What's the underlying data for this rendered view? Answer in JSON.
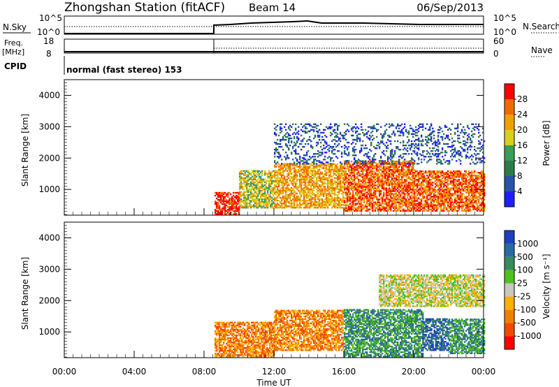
{
  "header": {
    "title": "Zhongshan Station (fitACF)",
    "beam": "Beam 14",
    "date": "06/Sep/2013"
  },
  "top_panels": {
    "nsky_label": "N.Sky",
    "nsky_ticks": [
      "10^5",
      "10^0"
    ],
    "nsearch_label": "N.Search",
    "nsearch_ticks": [
      "10^5",
      "10^0"
    ],
    "freq_label_line1": "Freq.",
    "freq_label_line2": "[MHz]",
    "freq_ticks": [
      "18",
      "8"
    ],
    "nave_label": "Nave",
    "nave_ticks": [
      "60",
      "0"
    ],
    "cpid_label": "CPID",
    "cpid_text": "normal (fast stereo) 153"
  },
  "colors": {
    "power": [
      "#1f1fff",
      "#2a52a8",
      "#2e7a4a",
      "#3c9c5a",
      "#d8d020",
      "#f0a000",
      "#f06a00",
      "#ff0000"
    ],
    "velocity": [
      "#ff0000",
      "#f04c00",
      "#f08000",
      "#ffb000",
      "#c8c8c0",
      "#50c020",
      "#3a8a5a",
      "#2a6aa0",
      "#1f3fc0"
    ]
  },
  "power_scale": {
    "label": "Power [dB]",
    "ticks": [
      "4",
      "8",
      "12",
      "16",
      "20",
      "24",
      "28"
    ]
  },
  "velocity_scale": {
    "label": "Velocity [m s⁻¹]",
    "ticks": [
      "-1000",
      "-500",
      "-100",
      "-25",
      "25",
      "100",
      "500",
      "1000"
    ]
  },
  "chart_data": [
    {
      "type": "heatmap",
      "name": "power",
      "ylabel": "Slant Range [km]",
      "ylim": [
        180,
        4500
      ],
      "yticks": [
        "1000",
        "2000",
        "3000",
        "4000"
      ],
      "xlim": [
        0,
        24
      ],
      "xticks": [
        "00:00",
        "04:00",
        "08:00",
        "12:00",
        "16:00",
        "20:00",
        "00:00"
      ],
      "colorbar_label": "Power [dB]",
      "colorbar_ticks": [
        4,
        8,
        12,
        16,
        20,
        24,
        28
      ],
      "data_start_ut": 8.6,
      "regions": [
        {
          "t": [
            8.6,
            10.0
          ],
          "r": [
            200,
            900
          ],
          "level": 7
        },
        {
          "t": [
            10.0,
            12.0
          ],
          "r": [
            400,
            1600
          ],
          "level": 4
        },
        {
          "t": [
            12.0,
            16.0
          ],
          "r": [
            400,
            1800
          ],
          "level": 5
        },
        {
          "t": [
            16.0,
            20.0
          ],
          "r": [
            300,
            1900
          ],
          "level": 6
        },
        {
          "t": [
            20.0,
            24.0
          ],
          "r": [
            300,
            1600
          ],
          "level": 6
        },
        {
          "t": [
            12.0,
            24.0
          ],
          "r": [
            1800,
            3100
          ],
          "level": 1
        }
      ]
    },
    {
      "type": "heatmap",
      "name": "velocity",
      "ylabel": "Slant Range [km]",
      "ylim": [
        180,
        4500
      ],
      "yticks": [
        "1000",
        "2000",
        "3000",
        "4000"
      ],
      "xlim": [
        0,
        24
      ],
      "xticks": [
        "00:00",
        "04:00",
        "08:00",
        "12:00",
        "16:00",
        "20:00",
        "00:00"
      ],
      "xlabel": "Time UT",
      "colorbar_label": "Velocity [m s⁻¹]",
      "colorbar_ticks": [
        -1000,
        -500,
        -100,
        -25,
        25,
        100,
        500,
        1000
      ],
      "data_start_ut": 8.6,
      "regions": [
        {
          "t": [
            8.6,
            12.0
          ],
          "r": [
            200,
            1300
          ],
          "level": 2
        },
        {
          "t": [
            12.0,
            16.0
          ],
          "r": [
            400,
            1700
          ],
          "level": 2
        },
        {
          "t": [
            16.0,
            20.5
          ],
          "r": [
            200,
            1700
          ],
          "level": 6
        },
        {
          "t": [
            20.5,
            22.0
          ],
          "r": [
            400,
            1400
          ],
          "level": 7
        },
        {
          "t": [
            22.0,
            24.0
          ],
          "r": [
            300,
            1400
          ],
          "level": 6
        },
        {
          "t": [
            18.0,
            24.0
          ],
          "r": [
            1800,
            2800
          ],
          "level": 4
        }
      ]
    }
  ]
}
